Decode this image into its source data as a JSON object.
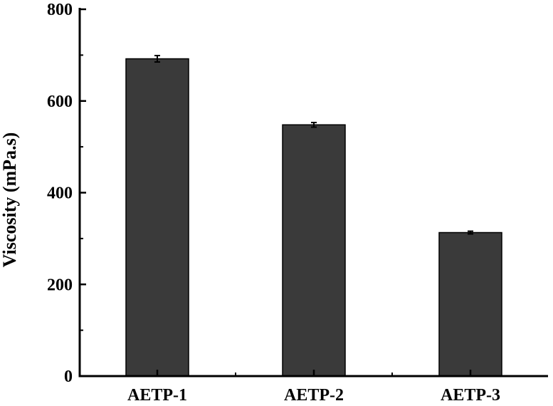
{
  "chart_data": {
    "type": "bar",
    "categories": [
      "AETP-1",
      "AETP-2",
      "AETP-3"
    ],
    "values": [
      692,
      548,
      313
    ],
    "errors": [
      7,
      5,
      3
    ],
    "ylabel": "Viscosity (mPa.s)",
    "xlabel": "",
    "ylim": [
      0,
      800
    ],
    "yticks": [
      0,
      200,
      400,
      600,
      800
    ],
    "grid": false,
    "legend": "none",
    "colors": {
      "bar": "#3a3a3a",
      "axis": "#000000"
    }
  }
}
